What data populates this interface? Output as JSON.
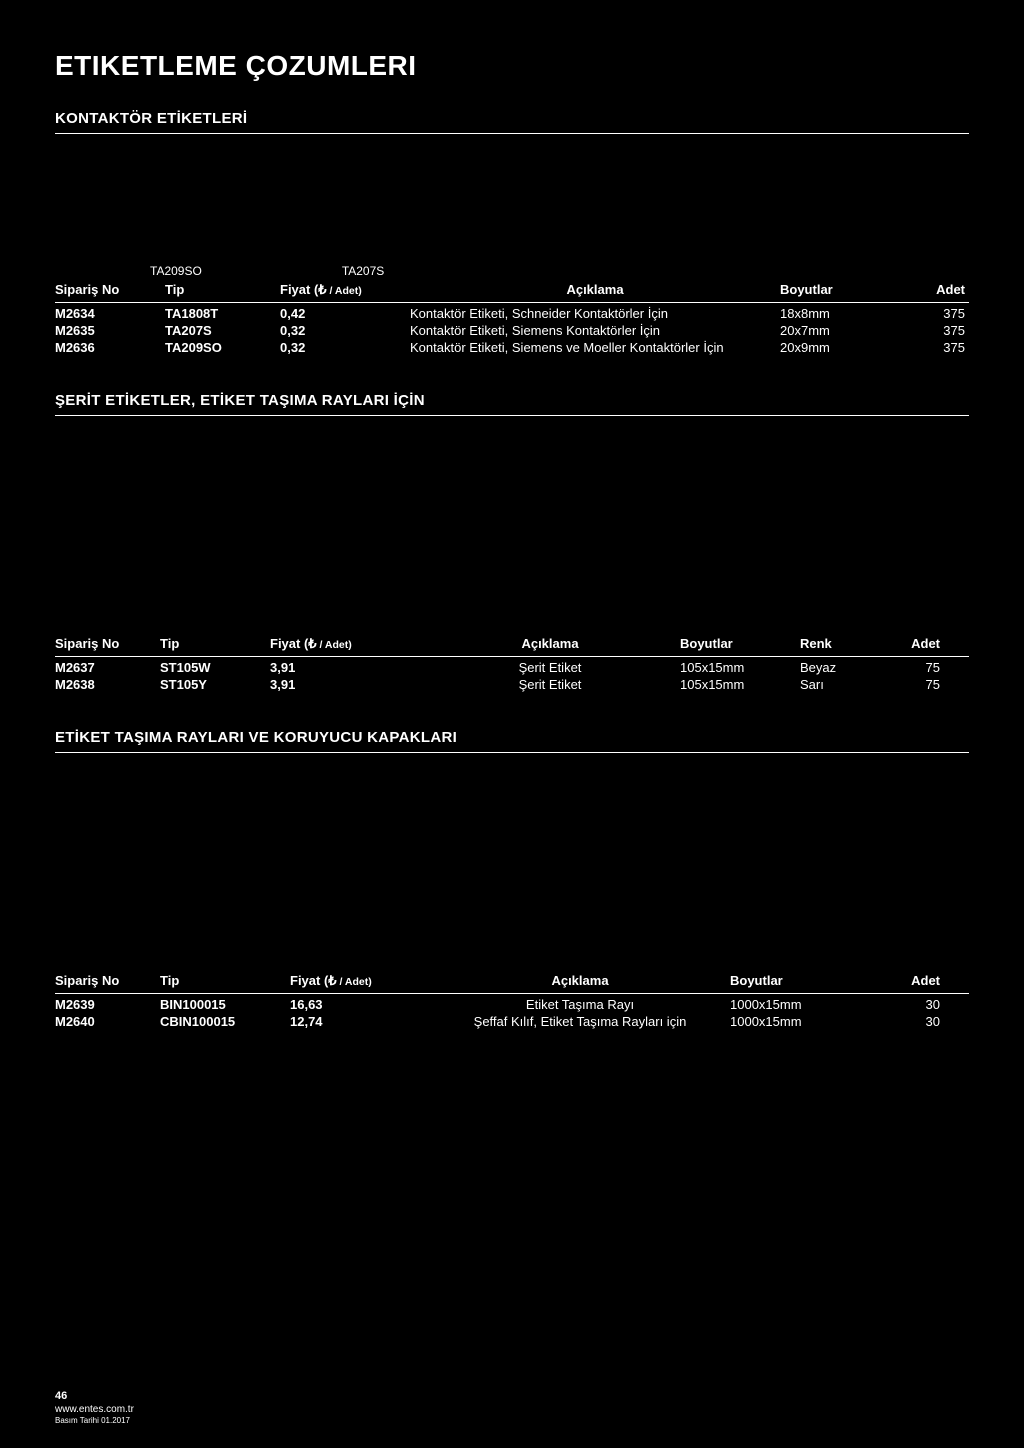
{
  "page": {
    "title": "ETIKETLEME ÇOZUMLERI",
    "number": "46",
    "website": "www.entes.com.tr",
    "print_date": "Basım Tarihi 01.2017"
  },
  "section1": {
    "title": "KONTAKTÖR ETİKETLERİ",
    "image_labels": [
      "TA209SO",
      "TA207S"
    ],
    "headers": {
      "siparis": "Sipariş No",
      "tip": "Tip",
      "fiyat_prefix": "Fiyat (₺",
      "fiyat_unit": " / Adet)",
      "aciklama": "Açıklama",
      "boyut": "Boyutlar",
      "adet": "Adet"
    },
    "rows": [
      {
        "siparis": "M2634",
        "tip": "TA1808T",
        "fiyat": "0,42",
        "aciklama": "Kontaktör Etiketi, Schneider Kontaktörler İçin",
        "boyut": "18x8mm",
        "adet": "375"
      },
      {
        "siparis": "M2635",
        "tip": "TA207S",
        "fiyat": "0,32",
        "aciklama": "Kontaktör Etiketi, Siemens Kontaktörler İçin",
        "boyut": "20x7mm",
        "adet": "375"
      },
      {
        "siparis": "M2636",
        "tip": "TA209SO",
        "fiyat": "0,32",
        "aciklama": "Kontaktör Etiketi, Siemens ve Moeller Kontaktörler İçin",
        "boyut": "20x9mm",
        "adet": "375"
      }
    ]
  },
  "section2": {
    "title": "ŞERİT ETİKETLER, ETİKET TAŞIMA RAYLARI İÇİN",
    "headers": {
      "siparis": "Sipariş No",
      "tip": "Tip",
      "fiyat_prefix": "Fiyat (₺",
      "fiyat_unit": " / Adet)",
      "aciklama": "Açıklama",
      "boyut": "Boyutlar",
      "renk": "Renk",
      "adet": "Adet"
    },
    "rows": [
      {
        "siparis": "M2637",
        "tip": "ST105W",
        "fiyat": "3,91",
        "aciklama": "Şerit Etiket",
        "boyut": "105x15mm",
        "renk": "Beyaz",
        "adet": "75"
      },
      {
        "siparis": "M2638",
        "tip": "ST105Y",
        "fiyat": "3,91",
        "aciklama": "Şerit Etiket",
        "boyut": "105x15mm",
        "renk": "Sarı",
        "adet": "75"
      }
    ]
  },
  "section3": {
    "title": "ETİKET TAŞIMA RAYLARI VE KORUYUCU KAPAKLARI",
    "headers": {
      "siparis": "Sipariş No",
      "tip": "Tip",
      "fiyat_prefix": "Fiyat (₺",
      "fiyat_unit": " / Adet)",
      "aciklama": "Açıklama",
      "boyut": "Boyutlar",
      "adet": "Adet"
    },
    "rows": [
      {
        "siparis": "M2639",
        "tip": "BIN100015",
        "fiyat": "16,63",
        "aciklama": "Etiket Taşıma Rayı",
        "boyut": "1000x15mm",
        "adet": "30"
      },
      {
        "siparis": "M2640",
        "tip": "CBIN100015",
        "fiyat": "12,74",
        "aciklama": "Şeffaf Kılıf, Etiket Taşıma Rayları için",
        "boyut": "1000x15mm",
        "adet": "30"
      }
    ]
  }
}
